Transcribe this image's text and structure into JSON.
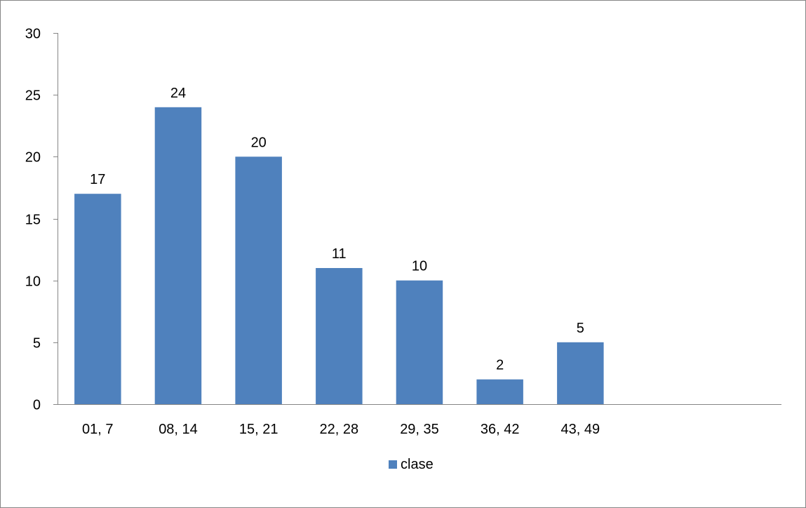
{
  "chart_data": {
    "type": "bar",
    "title": "",
    "xlabel": "",
    "ylabel": "",
    "categories": [
      "01, 7",
      "08, 14",
      "15, 21",
      "22, 28",
      "29, 35",
      "36, 42",
      "43, 49"
    ],
    "series": [
      {
        "name": "clase",
        "values": [
          17,
          24,
          20,
          11,
          10,
          2,
          5
        ],
        "color": "#4f81bd"
      }
    ],
    "ylim": [
      0,
      30
    ],
    "yticks": [
      0,
      5,
      10,
      15,
      20,
      25,
      30
    ],
    "extra_empty_category_slots": 2,
    "grid": false,
    "data_labels": true,
    "legend": {
      "position": "bottom",
      "entries": [
        "clase"
      ]
    },
    "axis_color": "#868686"
  }
}
